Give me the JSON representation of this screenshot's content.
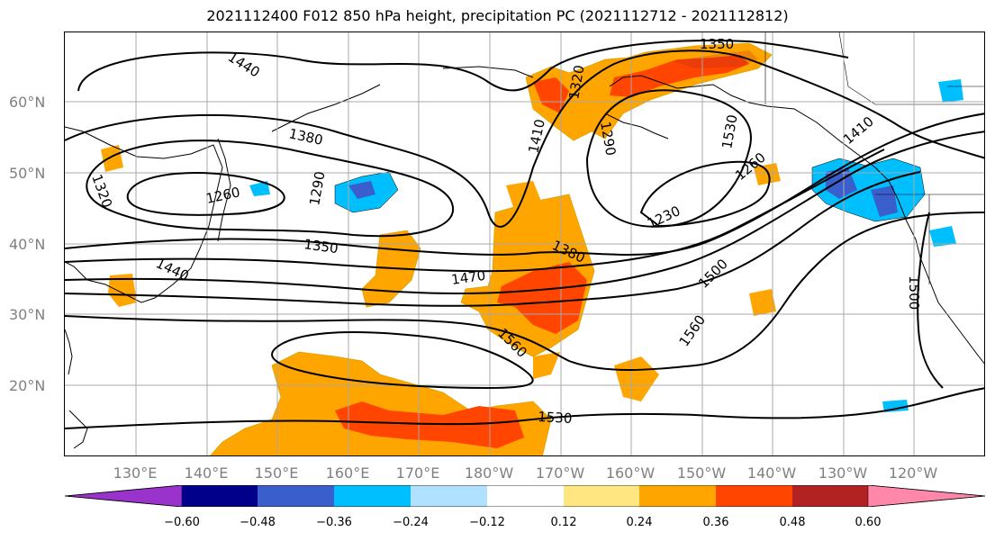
{
  "title": "2021112400 F012 850 hPa height, precipitation PC (2021112712 - 2021112812)",
  "lat_labels": [
    "60°N",
    "50°N",
    "40°N",
    "30°N",
    "20°N"
  ],
  "lon_labels": [
    "130°E",
    "140°E",
    "150°E",
    "160°E",
    "170°E",
    "180°W",
    "170°W",
    "160°W",
    "150°W",
    "140°W",
    "130°W",
    "120°W"
  ],
  "contour_labels": [
    "1350",
    "1440",
    "1380",
    "1320",
    "1260",
    "1290",
    "1350",
    "1440",
    "1470",
    "1380",
    "1410",
    "1320",
    "1290",
    "1230",
    "1260",
    "1410",
    "1500",
    "1560",
    "1560",
    "1530",
    "1530",
    "1500"
  ],
  "colorbar": {
    "tick_labels": [
      "−0.60",
      "−0.48",
      "−0.36",
      "−0.24",
      "−0.12",
      "0.12",
      "0.24",
      "0.36",
      "0.48",
      "0.60"
    ],
    "colors": [
      "#9933cc",
      "#00008b",
      "#3a5fcd",
      "#00bfff",
      "#b0e2ff",
      "#ffffff",
      "#ffe680",
      "#ffa500",
      "#ff4500",
      "#b22222",
      "#ff88aa"
    ]
  },
  "colors": {
    "grid": "#a8a8a8",
    "axis_label": "#808080",
    "contour": "#000000"
  }
}
